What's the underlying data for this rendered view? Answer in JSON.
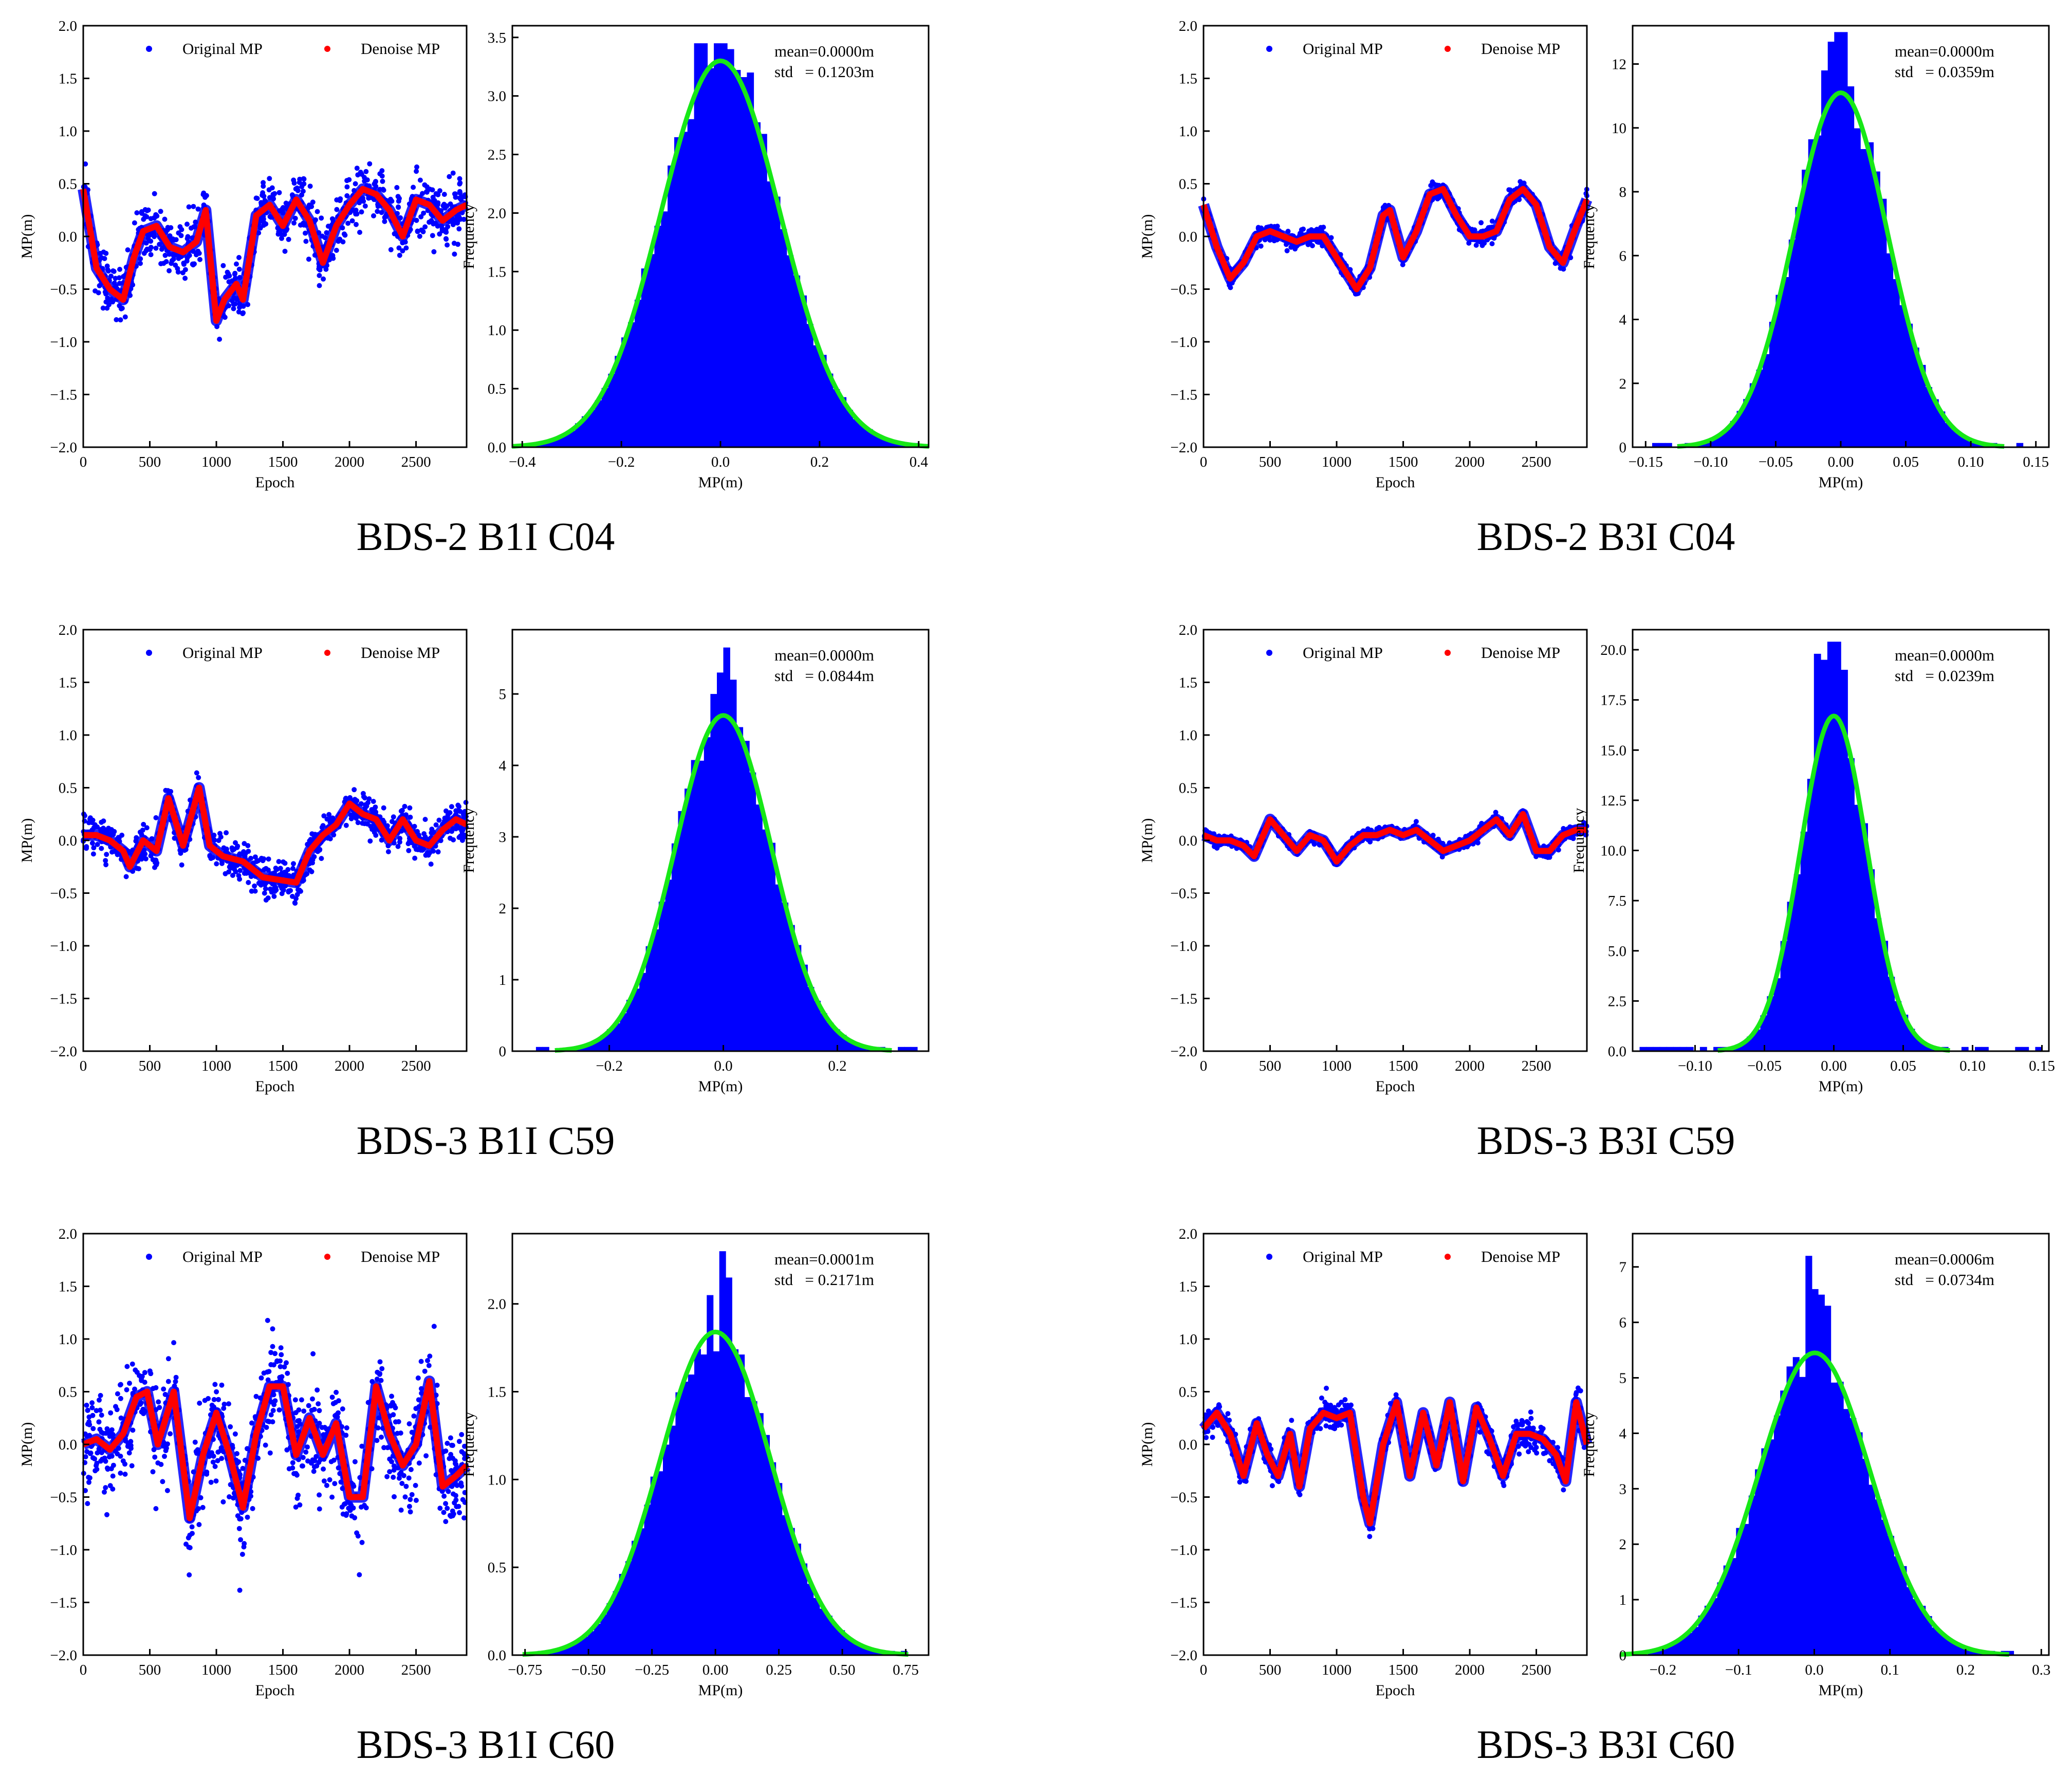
{
  "colors": {
    "original": "#0000ff",
    "denoise": "#ff0000",
    "fit": "#17e817",
    "hist": "#0000ff"
  },
  "figure_caption_panels": [
    "BDS-2 B1I C04",
    "BDS-2 B3I C04",
    "BDS-3 B1I C59",
    "BDS-3 B3I C59",
    "BDS-3 B1I C60",
    "BDS-3 B3I C60"
  ],
  "chart_data": [
    {
      "id": "p1",
      "caption": "BDS-2 B1I C04",
      "series": {
        "type": "scatter",
        "xlabel": "Epoch",
        "ylabel": "MP(m)",
        "xlim": [
          0,
          2880
        ],
        "ylim": [
          -2.0,
          2.0
        ],
        "xticks": [
          0,
          500,
          1000,
          1500,
          2000,
          2500
        ],
        "yticks": [
          -2.0,
          -1.5,
          -1.0,
          -0.5,
          0.0,
          0.5,
          1.0,
          1.5,
          2.0
        ],
        "legend": [
          "Original MP",
          "Denoise MP"
        ],
        "denoise_x": [
          0,
          100,
          200,
          300,
          380,
          450,
          550,
          650,
          750,
          850,
          920,
          1000,
          1060,
          1150,
          1200,
          1300,
          1400,
          1500,
          1600,
          1700,
          1800,
          1900,
          2000,
          2100,
          2200,
          2300,
          2400,
          2500,
          2600,
          2700,
          2800,
          2880
        ],
        "denoise_y": [
          0.45,
          -0.3,
          -0.5,
          -0.6,
          -0.2,
          0.05,
          0.1,
          -0.1,
          -0.15,
          -0.05,
          0.25,
          -0.8,
          -0.6,
          -0.45,
          -0.6,
          0.2,
          0.3,
          0.1,
          0.35,
          0.15,
          -0.25,
          0.1,
          0.3,
          0.45,
          0.4,
          0.25,
          0.0,
          0.35,
          0.3,
          0.15,
          0.25,
          0.3
        ],
        "noise_amplitude": 0.2
      },
      "hist": {
        "type": "bar",
        "xlabel": "MP(m)",
        "ylabel": "Frequency",
        "xlim": [
          -0.42,
          0.42
        ],
        "ylim": [
          0,
          3.6
        ],
        "xticks": [
          -0.4,
          -0.2,
          0.0,
          0.2,
          0.4
        ],
        "xtick_labels": [
          "−0.4",
          "−0.2",
          "0.0",
          "0.2",
          "0.4"
        ],
        "yticks": [
          0,
          0.5,
          1.0,
          1.5,
          2.0,
          2.5,
          3.0,
          3.5
        ],
        "ytick_labels": [
          "0.0",
          "0.5",
          "1.0",
          "1.5",
          "2.0",
          "2.5",
          "3.0",
          "3.5"
        ],
        "bin_range": [
          -0.4,
          0.4
        ],
        "bins": 60,
        "mean": 0.0,
        "std": 0.1203,
        "peak": 3.3,
        "spikes": [
          [
            0.0,
            3.45
          ],
          [
            -0.04,
            3.45
          ],
          [
            0.02,
            3.4
          ],
          [
            0.06,
            3.2
          ]
        ],
        "stats": [
          "mean=0.0000m",
          "std   = 0.1203m"
        ]
      }
    },
    {
      "id": "p2",
      "caption": "BDS-2 B3I C04",
      "series": {
        "type": "scatter",
        "xlabel": "Epoch",
        "ylabel": "MP(m)",
        "xlim": [
          0,
          2880
        ],
        "ylim": [
          -2.0,
          2.0
        ],
        "xticks": [
          0,
          500,
          1000,
          1500,
          2000,
          2500
        ],
        "yticks": [
          -2.0,
          -1.5,
          -1.0,
          -0.5,
          0.0,
          0.5,
          1.0,
          1.5,
          2.0
        ],
        "legend": [
          "Original MP",
          "Denoise MP"
        ],
        "denoise_x": [
          0,
          100,
          200,
          300,
          400,
          500,
          600,
          700,
          800,
          900,
          1000,
          1100,
          1150,
          1250,
          1350,
          1400,
          1500,
          1600,
          1700,
          1800,
          1900,
          2000,
          2100,
          2200,
          2300,
          2400,
          2500,
          2600,
          2700,
          2800,
          2880
        ],
        "denoise_y": [
          0.3,
          -0.1,
          -0.4,
          -0.25,
          0.0,
          0.05,
          0.0,
          -0.05,
          0.0,
          0.0,
          -0.2,
          -0.4,
          -0.5,
          -0.3,
          0.2,
          0.25,
          -0.2,
          0.05,
          0.4,
          0.45,
          0.2,
          0.0,
          0.0,
          0.05,
          0.35,
          0.45,
          0.3,
          -0.1,
          -0.25,
          0.1,
          0.35
        ],
        "noise_amplitude": 0.06
      },
      "hist": {
        "type": "bar",
        "xlabel": "MP(m)",
        "ylabel": "Frequency",
        "xlim": [
          -0.16,
          0.16
        ],
        "ylim": [
          0,
          13.2
        ],
        "xticks": [
          -0.15,
          -0.1,
          -0.05,
          0.0,
          0.05,
          0.1,
          0.15
        ],
        "xtick_labels": [
          "−0.15",
          "−0.10",
          "−0.05",
          "0.00",
          "0.05",
          "0.10",
          "0.15"
        ],
        "yticks": [
          0,
          2,
          4,
          6,
          8,
          10,
          12
        ],
        "ytick_labels": [
          "0",
          "2",
          "4",
          "6",
          "8",
          "10",
          "12"
        ],
        "bin_range": [
          -0.15,
          0.15
        ],
        "bins": 60,
        "mean": 0.0,
        "std": 0.0359,
        "peak": 11.1,
        "spikes": [
          [
            0.0,
            13.0
          ],
          [
            -0.005,
            12.7
          ],
          [
            -0.012,
            11.8
          ],
          [
            0.006,
            11.3
          ]
        ],
        "stats": [
          "mean=0.0000m",
          "std   = 0.0359m"
        ]
      }
    },
    {
      "id": "p3",
      "caption": "BDS-3 B1I C59",
      "series": {
        "type": "scatter",
        "xlabel": "Epoch",
        "ylabel": "MP(m)",
        "xlim": [
          0,
          2880
        ],
        "ylim": [
          -2.0,
          2.0
        ],
        "xticks": [
          0,
          500,
          1000,
          1500,
          2000,
          2500
        ],
        "yticks": [
          -2.0,
          -1.5,
          -1.0,
          -0.5,
          0.0,
          0.5,
          1.0,
          1.5,
          2.0
        ],
        "legend": [
          "Original MP",
          "Denoise MP"
        ],
        "denoise_x": [
          0,
          100,
          200,
          300,
          350,
          450,
          550,
          640,
          750,
          870,
          950,
          1050,
          1200,
          1350,
          1500,
          1600,
          1700,
          1800,
          1900,
          2000,
          2100,
          2200,
          2300,
          2400,
          2500,
          2600,
          2700,
          2800,
          2880
        ],
        "denoise_y": [
          0.05,
          0.05,
          0.0,
          -0.1,
          -0.25,
          0.0,
          -0.1,
          0.4,
          -0.05,
          0.5,
          -0.05,
          -0.15,
          -0.2,
          -0.35,
          -0.38,
          -0.4,
          -0.1,
          0.05,
          0.15,
          0.35,
          0.25,
          0.2,
          0.0,
          0.2,
          0.0,
          -0.05,
          0.1,
          0.2,
          0.15
        ],
        "noise_amplitude": 0.12
      },
      "hist": {
        "type": "bar",
        "xlabel": "MP(m)",
        "ylabel": "Frequency",
        "xlim": [
          -0.37,
          0.36
        ],
        "ylim": [
          0,
          5.9
        ],
        "xticks": [
          -0.2,
          0.0,
          0.2
        ],
        "xtick_labels": [
          "−0.2",
          "0.0",
          "0.2"
        ],
        "yticks": [
          0,
          1,
          2,
          3,
          4,
          5
        ],
        "ytick_labels": [
          "0",
          "1",
          "2",
          "3",
          "4",
          "5"
        ],
        "bin_range": [
          -0.34,
          0.34
        ],
        "bins": 60,
        "mean": 0.0,
        "std": 0.0844,
        "peak": 4.7,
        "spikes": [
          [
            0.005,
            5.65
          ],
          [
            -0.01,
            5.3
          ],
          [
            0.018,
            5.2
          ],
          [
            -0.02,
            5.0
          ]
        ],
        "stats": [
          "mean=0.0000m",
          "std   = 0.0844m"
        ]
      }
    },
    {
      "id": "p4",
      "caption": "BDS-3 B3I C59",
      "series": {
        "type": "scatter",
        "xlabel": "Epoch",
        "ylabel": "MP(m)",
        "xlim": [
          0,
          2880
        ],
        "ylim": [
          -2.0,
          2.0
        ],
        "xticks": [
          0,
          500,
          1000,
          1500,
          2000,
          2500
        ],
        "yticks": [
          -2.0,
          -1.5,
          -1.0,
          -0.5,
          0.0,
          0.5,
          1.0,
          1.5,
          2.0
        ],
        "legend": [
          "Original MP",
          "Denoise MP"
        ],
        "denoise_x": [
          0,
          100,
          200,
          300,
          380,
          500,
          600,
          700,
          800,
          900,
          1000,
          1100,
          1200,
          1300,
          1400,
          1500,
          1600,
          1700,
          1800,
          1900,
          2000,
          2100,
          2200,
          2300,
          2400,
          2500,
          2600,
          2700,
          2800,
          2880
        ],
        "denoise_y": [
          0.05,
          0.0,
          0.0,
          -0.05,
          -0.15,
          0.2,
          0.05,
          -0.1,
          0.05,
          0.0,
          -0.2,
          -0.05,
          0.05,
          0.05,
          0.1,
          0.05,
          0.1,
          0.0,
          -0.1,
          -0.05,
          0.0,
          0.1,
          0.2,
          0.05,
          0.25,
          -0.1,
          -0.1,
          0.05,
          0.1,
          0.1
        ],
        "noise_amplitude": 0.04
      },
      "hist": {
        "type": "bar",
        "xlabel": "MP(m)",
        "ylabel": "Frequency",
        "xlim": [
          -0.145,
          0.155
        ],
        "ylim": [
          0,
          21.0
        ],
        "xticks": [
          -0.1,
          -0.05,
          0.0,
          0.05,
          0.1,
          0.15
        ],
        "xtick_labels": [
          "−0.10",
          "−0.05",
          "0.00",
          "0.05",
          "0.10",
          "0.15"
        ],
        "yticks": [
          0,
          2.5,
          5.0,
          7.5,
          10.0,
          12.5,
          15.0,
          17.5,
          20.0
        ],
        "ytick_labels": [
          "0.0",
          "2.5",
          "5.0",
          "7.5",
          "10.0",
          "12.5",
          "15.0",
          "17.5",
          "20.0"
        ],
        "bin_range": [
          -0.14,
          0.15
        ],
        "bins": 60,
        "mean": 0.0,
        "std": 0.0239,
        "peak": 16.7,
        "spikes": [
          [
            0.0,
            20.4
          ],
          [
            -0.005,
            19.5
          ],
          [
            -0.01,
            19.8
          ],
          [
            0.005,
            19.0
          ]
        ],
        "stats": [
          "mean=0.0000m",
          "std   = 0.0239m"
        ]
      }
    },
    {
      "id": "p5",
      "caption": "BDS-3 B1I C60",
      "series": {
        "type": "scatter",
        "xlabel": "Epoch",
        "ylabel": "MP(m)",
        "xlim": [
          0,
          2880
        ],
        "ylim": [
          -2.0,
          2.0
        ],
        "xticks": [
          0,
          500,
          1000,
          1500,
          2000,
          2500
        ],
        "yticks": [
          -2.0,
          -1.5,
          -1.0,
          -0.5,
          0.0,
          0.5,
          1.0,
          1.5,
          2.0
        ],
        "legend": [
          "Original MP",
          "Denoise MP"
        ],
        "denoise_x": [
          0,
          100,
          200,
          300,
          400,
          480,
          560,
          680,
          800,
          900,
          1000,
          1100,
          1200,
          1300,
          1400,
          1500,
          1600,
          1700,
          1800,
          1900,
          2000,
          2100,
          2200,
          2300,
          2400,
          2500,
          2600,
          2700,
          2800,
          2880
        ],
        "denoise_y": [
          0.0,
          0.05,
          -0.05,
          0.1,
          0.45,
          0.5,
          0.0,
          0.5,
          -0.7,
          -0.1,
          0.3,
          -0.1,
          -0.6,
          0.1,
          0.55,
          0.55,
          -0.1,
          0.25,
          -0.1,
          0.2,
          -0.5,
          -0.5,
          0.55,
          0.1,
          -0.2,
          0.0,
          0.6,
          -0.4,
          -0.3,
          -0.2
        ],
        "noise_amplitude": 0.35
      },
      "hist": {
        "type": "bar",
        "xlabel": "MP(m)",
        "ylabel": "Frequency",
        "xlim": [
          -0.8,
          0.84
        ],
        "ylim": [
          0,
          2.4
        ],
        "xticks": [
          -0.75,
          -0.5,
          -0.25,
          0.0,
          0.25,
          0.5,
          0.75
        ],
        "xtick_labels": [
          "−0.75",
          "−0.50",
          "−0.25",
          "0.00",
          "0.25",
          "0.50",
          "0.75"
        ],
        "yticks": [
          0,
          0.5,
          1.0,
          1.5,
          2.0
        ],
        "ytick_labels": [
          "0.0",
          "0.5",
          "1.0",
          "1.5",
          "2.0"
        ],
        "bin_range": [
          -0.7,
          0.78
        ],
        "bins": 60,
        "mean": 0.0001,
        "std": 0.2171,
        "peak": 1.84,
        "spikes": [
          [
            0.02,
            2.3
          ],
          [
            0.06,
            2.15
          ],
          [
            -0.02,
            2.05
          ],
          [
            0.1,
            1.65
          ]
        ],
        "stats": [
          "mean=0.0001m",
          "std   = 0.2171m"
        ]
      }
    },
    {
      "id": "p6",
      "caption": "BDS-3 B3I C60",
      "series": {
        "type": "scatter",
        "xlabel": "Epoch",
        "ylabel": "MP(m)",
        "xlim": [
          0,
          2880
        ],
        "ylim": [
          -2.0,
          2.0
        ],
        "xticks": [
          0,
          500,
          1000,
          1500,
          2000,
          2500
        ],
        "yticks": [
          -2.0,
          -1.5,
          -1.0,
          -0.5,
          0.0,
          0.5,
          1.0,
          1.5,
          2.0
        ],
        "legend": [
          "Original MP",
          "Denoise MP"
        ],
        "denoise_x": [
          0,
          100,
          200,
          300,
          400,
          480,
          560,
          650,
          720,
          800,
          900,
          1000,
          1100,
          1200,
          1250,
          1350,
          1450,
          1550,
          1650,
          1750,
          1850,
          1950,
          2050,
          2150,
          2250,
          2350,
          2450,
          2550,
          2650,
          2720,
          2800,
          2880
        ],
        "denoise_y": [
          0.15,
          0.3,
          0.1,
          -0.3,
          0.2,
          -0.1,
          -0.3,
          0.1,
          -0.4,
          0.15,
          0.3,
          0.25,
          0.3,
          -0.5,
          -0.75,
          0.0,
          0.4,
          -0.3,
          0.3,
          -0.2,
          0.4,
          -0.35,
          0.35,
          0.05,
          -0.3,
          0.1,
          0.1,
          0.05,
          -0.1,
          -0.35,
          0.4,
          0.0
        ],
        "noise_amplitude": 0.1
      },
      "hist": {
        "type": "bar",
        "xlabel": "MP(m)",
        "ylabel": "Frequency",
        "xlim": [
          -0.24,
          0.31
        ],
        "ylim": [
          0,
          7.6
        ],
        "xticks": [
          -0.2,
          -0.1,
          0.0,
          0.1,
          0.2,
          0.3
        ],
        "xtick_labels": [
          "−0.2",
          "−0.1",
          "0.0",
          "0.1",
          "0.2",
          "0.3"
        ],
        "yticks": [
          0,
          1,
          2,
          3,
          4,
          5,
          6,
          7
        ],
        "ytick_labels": [
          "0",
          "1",
          "2",
          "3",
          "4",
          "5",
          "6",
          "7"
        ],
        "bin_range": [
          -0.22,
          0.28
        ],
        "bins": 60,
        "mean": 0.0006,
        "std": 0.0734,
        "peak": 5.45,
        "spikes": [
          [
            -0.005,
            7.2
          ],
          [
            0.01,
            6.5
          ],
          [
            0.0,
            6.6
          ],
          [
            0.02,
            6.3
          ]
        ],
        "stats": [
          "mean=0.0006m",
          "std   = 0.0734m"
        ]
      }
    }
  ]
}
